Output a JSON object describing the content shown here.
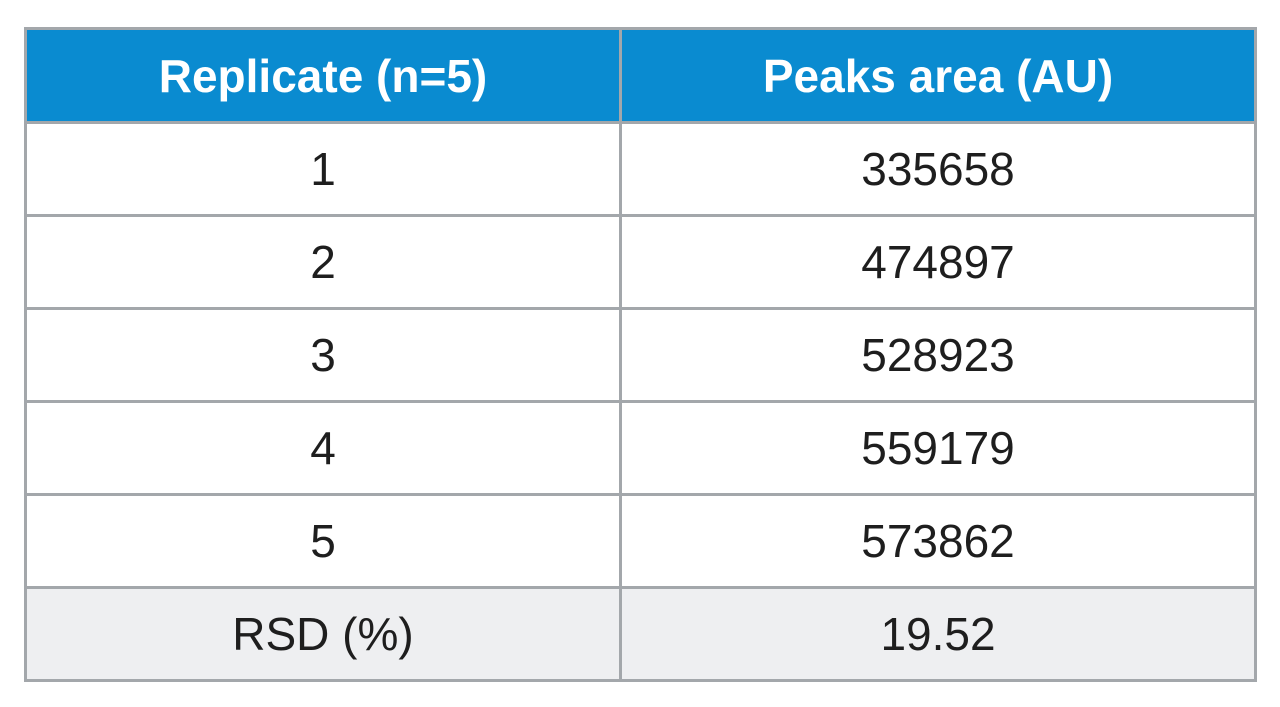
{
  "table": {
    "header": [
      "Replicate (n=5)",
      "Peaks area (AU)"
    ],
    "rows": [
      [
        "1",
        "335658"
      ],
      [
        "2",
        "474897"
      ],
      [
        "3",
        "528923"
      ],
      [
        "4",
        "559179"
      ],
      [
        "5",
        "573862"
      ],
      [
        "RSD (%)",
        "19.52"
      ]
    ]
  }
}
